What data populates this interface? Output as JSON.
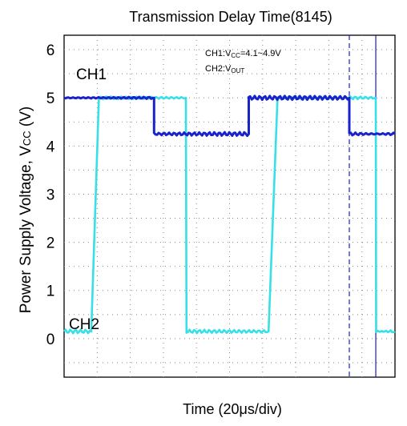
{
  "chart_data": {
    "type": "line",
    "title": "Transmission Delay Time(8145)",
    "xlabel": "Time (20μs/div)",
    "ylabel_main": "Power Supply Voltage, V",
    "ylabel_sub": "CC",
    "ylabel_unit": " (V)",
    "ylim": [
      -0.8,
      6.3
    ],
    "xlim": [
      0,
      10
    ],
    "y_ticks": [
      "6",
      "5",
      "4",
      "3",
      "2",
      "1",
      "0"
    ],
    "grid": true,
    "annotation": {
      "line1_prefix": "CH1:V",
      "line1_sub": "CC",
      "line1_suffix": "=4.1~4.9V",
      "line2_prefix": "CH2:V",
      "line2_sub": "OUT"
    },
    "series": [
      {
        "name": "CH1",
        "color": "#1a23c9",
        "x": [
          0,
          2.72,
          2.72,
          5.58,
          5.58,
          8.62,
          8.62,
          10
        ],
        "y": [
          5.0,
          5.0,
          4.25,
          4.25,
          5.0,
          5.0,
          4.25,
          4.25
        ]
      },
      {
        "name": "CH2",
        "color": "#36e0e6",
        "x": [
          0,
          0.82,
          1.05,
          3.68,
          3.7,
          6.18,
          6.45,
          9.42,
          9.43,
          10
        ],
        "y": [
          0.15,
          0.15,
          5.0,
          5.0,
          0.15,
          0.15,
          5.0,
          5.0,
          0.15,
          0.15
        ]
      }
    ],
    "cursors": [
      {
        "x": 8.62,
        "style": "dashed",
        "color": "#1a23c9"
      },
      {
        "x": 9.42,
        "style": "solid",
        "color": "#1a237e"
      }
    ]
  }
}
